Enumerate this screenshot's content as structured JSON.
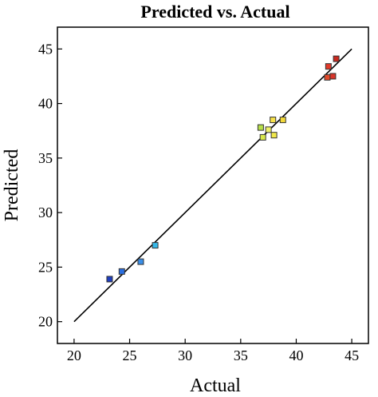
{
  "chart_data": {
    "type": "scatter",
    "title": "Predicted vs. Actual",
    "xlabel": "Actual",
    "ylabel": "Predicted",
    "xlim": [
      18.5,
      46.5
    ],
    "ylim": [
      18.0,
      47.0
    ],
    "xticks": [
      20,
      25,
      30,
      35,
      40,
      45
    ],
    "yticks": [
      20,
      25,
      30,
      35,
      40,
      45
    ],
    "grid": false,
    "reference_line": {
      "from": [
        20,
        20
      ],
      "to": [
        45,
        45
      ]
    },
    "points": [
      {
        "x": 23.2,
        "y": 23.9,
        "color": "#1f3fbf"
      },
      {
        "x": 24.3,
        "y": 24.6,
        "color": "#2b6fe0"
      },
      {
        "x": 26.0,
        "y": 25.5,
        "color": "#3a8fe8"
      },
      {
        "x": 27.3,
        "y": 27.0,
        "color": "#36b8e8"
      },
      {
        "x": 36.8,
        "y": 37.8,
        "color": "#b7e04a"
      },
      {
        "x": 37.0,
        "y": 36.9,
        "color": "#d9e84a"
      },
      {
        "x": 37.5,
        "y": 37.6,
        "color": "#eef06a"
      },
      {
        "x": 38.0,
        "y": 37.1,
        "color": "#f1e84a"
      },
      {
        "x": 37.9,
        "y": 38.5,
        "color": "#f6e04a"
      },
      {
        "x": 38.8,
        "y": 38.5,
        "color": "#f3d93a"
      },
      {
        "x": 42.9,
        "y": 43.4,
        "color": "#e23a2a"
      },
      {
        "x": 42.8,
        "y": 42.4,
        "color": "#e24a2a"
      },
      {
        "x": 43.3,
        "y": 42.5,
        "color": "#d8352a"
      },
      {
        "x": 43.6,
        "y": 44.1,
        "color": "#c82a20"
      }
    ]
  }
}
